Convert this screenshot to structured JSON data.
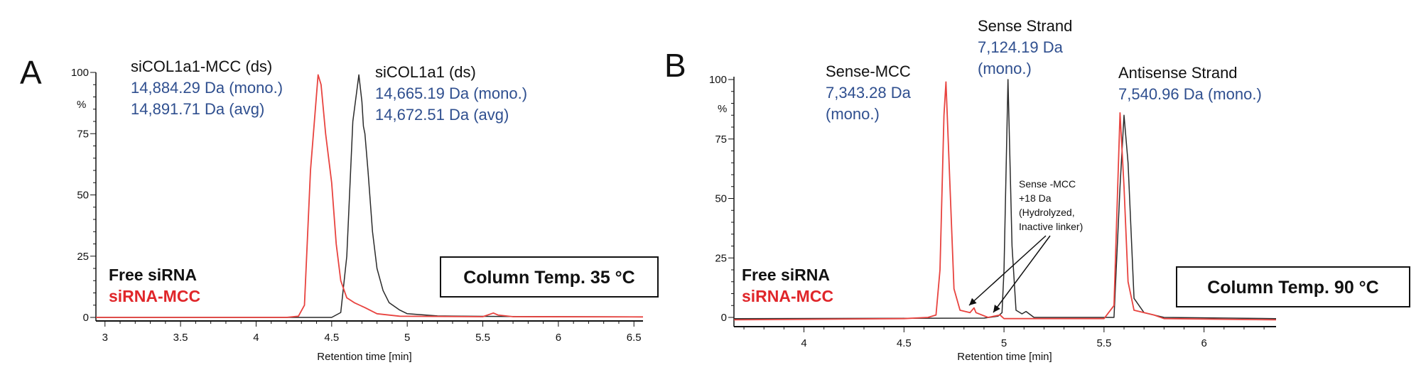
{
  "colors": {
    "free": "#2a2a2a",
    "mcc": "#e8433f",
    "blue": "#2f4f8f"
  },
  "chart_data": [
    {
      "type": "line",
      "panel": "A",
      "xlabel": "Retention time [min]",
      "ylabel": "%",
      "xlim": [
        2.94,
        6.56
      ],
      "ylim": [
        0,
        100
      ],
      "xticks": [
        "3",
        "3.5",
        "4",
        "4.5",
        "5",
        "5.5",
        "6",
        "6.5"
      ],
      "yticks": [
        "0",
        "25",
        "50",
        "75",
        "100"
      ],
      "legend": {
        "free": "Free siRNA",
        "mcc": "siRNA-MCC"
      },
      "condition": "Column Temp. 35 °C",
      "series": [
        {
          "name": "Free siRNA",
          "color": "#2a2a2a",
          "points": [
            [
              2.94,
              0
            ],
            [
              4.5,
              0
            ],
            [
              4.56,
              2
            ],
            [
              4.6,
              25
            ],
            [
              4.64,
              80
            ],
            [
              4.68,
              99
            ],
            [
              4.7,
              88
            ],
            [
              4.71,
              78
            ],
            [
              4.72,
              75
            ],
            [
              4.74,
              60
            ],
            [
              4.77,
              35
            ],
            [
              4.8,
              20
            ],
            [
              4.84,
              11
            ],
            [
              4.88,
              6
            ],
            [
              4.95,
              3
            ],
            [
              5.0,
              1.5
            ],
            [
              5.2,
              0.6
            ],
            [
              5.58,
              0.4
            ],
            [
              6.56,
              0.2
            ]
          ]
        },
        {
          "name": "siRNA-MCC",
          "color": "#e8433f",
          "points": [
            [
              2.94,
              0
            ],
            [
              4.2,
              0
            ],
            [
              4.28,
              0.5
            ],
            [
              4.32,
              5
            ],
            [
              4.36,
              60
            ],
            [
              4.41,
              99
            ],
            [
              4.43,
              95
            ],
            [
              4.46,
              75
            ],
            [
              4.5,
              55
            ],
            [
              4.53,
              30
            ],
            [
              4.56,
              15
            ],
            [
              4.6,
              8
            ],
            [
              4.65,
              6
            ],
            [
              4.72,
              4
            ],
            [
              4.8,
              1.5
            ],
            [
              4.95,
              0.5
            ],
            [
              5.5,
              0.3
            ],
            [
              5.57,
              1.8
            ],
            [
              5.6,
              1
            ],
            [
              5.7,
              0.3
            ],
            [
              6.56,
              0.2
            ]
          ]
        }
      ],
      "annotations": [
        {
          "title": "siCOL1a1-MCC (ds)",
          "lines": [
            "14,884.29 Da (mono.)",
            "14,891.71 Da (avg)"
          ]
        },
        {
          "title": "siCOL1a1 (ds)",
          "lines": [
            "14,665.19 Da (mono.)",
            "14,672.51 Da (avg)"
          ]
        }
      ]
    },
    {
      "type": "line",
      "panel": "B",
      "xlabel": "Retention time [min]",
      "ylabel": "%",
      "xlim": [
        3.65,
        6.36
      ],
      "ylim": [
        0,
        100
      ],
      "xticks": [
        "4",
        "4.5",
        "5",
        "5.5",
        "6"
      ],
      "yticks": [
        "0",
        "25",
        "50",
        "75",
        "100"
      ],
      "legend": {
        "free": "Free siRNA",
        "mcc": "siRNA-MCC"
      },
      "condition": "Column Temp. 90 °C",
      "series": [
        {
          "name": "Free siRNA",
          "color": "#2a2a2a",
          "points": [
            [
              3.65,
              -0.5
            ],
            [
              4.9,
              -0.3
            ],
            [
              4.97,
              0.5
            ],
            [
              4.99,
              2
            ],
            [
              5.0,
              20
            ],
            [
              5.02,
              100
            ],
            [
              5.04,
              30
            ],
            [
              5.06,
              3
            ],
            [
              5.09,
              1.5
            ],
            [
              5.11,
              2.5
            ],
            [
              5.15,
              0
            ],
            [
              5.55,
              0
            ],
            [
              5.58,
              55
            ],
            [
              5.6,
              85
            ],
            [
              5.62,
              65
            ],
            [
              5.65,
              8
            ],
            [
              5.7,
              2
            ],
            [
              5.8,
              0
            ],
            [
              6.36,
              -0.5
            ]
          ]
        },
        {
          "name": "siRNA-MCC",
          "color": "#e8433f",
          "points": [
            [
              3.65,
              -1
            ],
            [
              4.5,
              -0.5
            ],
            [
              4.62,
              0
            ],
            [
              4.66,
              1
            ],
            [
              4.68,
              20
            ],
            [
              4.7,
              85
            ],
            [
              4.71,
              99
            ],
            [
              4.73,
              55
            ],
            [
              4.75,
              12
            ],
            [
              4.78,
              3
            ],
            [
              4.83,
              2
            ],
            [
              4.85,
              4
            ],
            [
              4.86,
              2
            ],
            [
              4.92,
              0
            ],
            [
              4.98,
              1
            ],
            [
              5.0,
              -0.5
            ],
            [
              5.5,
              -0.5
            ],
            [
              5.55,
              5
            ],
            [
              5.58,
              86
            ],
            [
              5.6,
              55
            ],
            [
              5.62,
              15
            ],
            [
              5.65,
              3
            ],
            [
              5.75,
              1
            ],
            [
              5.8,
              -0.5
            ],
            [
              6.36,
              -1
            ]
          ]
        }
      ],
      "annotations": [
        {
          "title": "Sense-MCC",
          "lines": [
            "7,343.28 Da",
            "(mono.)"
          ]
        },
        {
          "title": "Sense Strand",
          "lines": [
            "7,124.19 Da",
            "(mono.)"
          ]
        },
        {
          "title": "Antisense Strand",
          "lines": [
            "7,540.96 Da (mono.)"
          ]
        }
      ],
      "callout": [
        "Sense -MCC",
        "+18 Da",
        "(Hydrolyzed,",
        "Inactive linker)"
      ]
    }
  ]
}
